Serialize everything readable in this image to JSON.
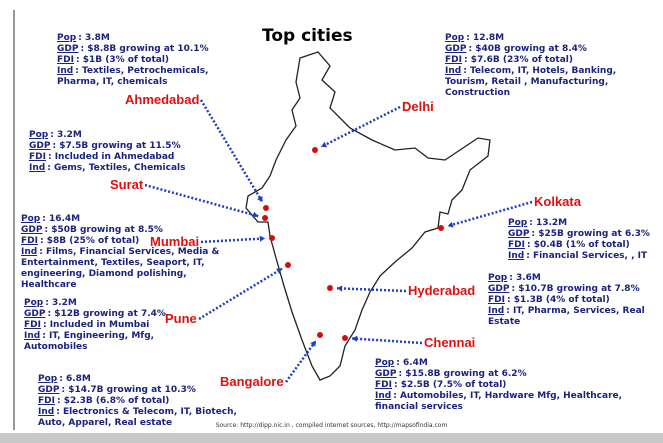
{
  "title": "Top cities",
  "field_labels": [
    "Pop",
    "GDP",
    "FDI",
    "Ind"
  ],
  "cities": [
    {
      "name": "Ahmedabad",
      "pop": "3.8M",
      "gdp": "$8.8B growing at 10.1%",
      "fdi": "$1B (3% of total)",
      "ind": "Textiles, Petrochemicals, Pharma, IT, chemicals"
    },
    {
      "name": "Delhi",
      "pop": "12.8M",
      "gdp": "$40B growing at 8.4%",
      "fdi": "$7.6B (23% of total)",
      "ind": "Telecom, IT, Hotels, Banking, Tourism, Retail , Manufacturing, Construction"
    },
    {
      "name": "Surat",
      "pop": "3.2M",
      "gdp": "$7.5B growing at 11.5%",
      "fdi": "Included in Ahmedabad",
      "ind": "Gems, Textiles, Chemicals"
    },
    {
      "name": "Kolkata",
      "pop": "13.2M",
      "gdp": "$25B growing at 6.3%",
      "fdi": "$0.4B (1% of total)",
      "ind": "Financial Services, , IT"
    },
    {
      "name": "Mumbai",
      "pop": "16.4M",
      "gdp": "$50B growing at 8.5%",
      "fdi": "$8B (25% of total)",
      "ind": "Films, Financial Services, Media & Entertainment, Textiles, Seaport, IT, engineering, Diamond polishing, Healthcare"
    },
    {
      "name": "Hyderabad",
      "pop": "3.6M",
      "gdp": "$10.7B growing at 7.8%",
      "fdi": "$1.3B (4% of total)",
      "ind": "IT, Pharma, Services, Real Estate"
    },
    {
      "name": "Pune",
      "pop": "3.2M",
      "gdp": "$12B growing at 7.4%",
      "fdi": "Included in Mumbai",
      "ind": "IT, Engineering, Mfg, Automobiles"
    },
    {
      "name": "Chennai",
      "pop": "6.4M",
      "gdp": "$15.8B growing at 6.2%",
      "fdi": "$2.5B (7.5% of total)",
      "ind": "Automobiles, IT, Hardware Mfg, Healthcare, financial services"
    },
    {
      "name": "Bangalore",
      "pop": "6.8M",
      "gdp": "$14.7B growing at 10.3%",
      "fdi": "$2.3B (6.8% of total)",
      "ind": "Electronics & Telecom, IT, Biotech, Auto, Apparel, Real estate"
    }
  ],
  "source": "Source: http://dipp.nic.in , compiled internet sources, http://mapsofindia.com"
}
